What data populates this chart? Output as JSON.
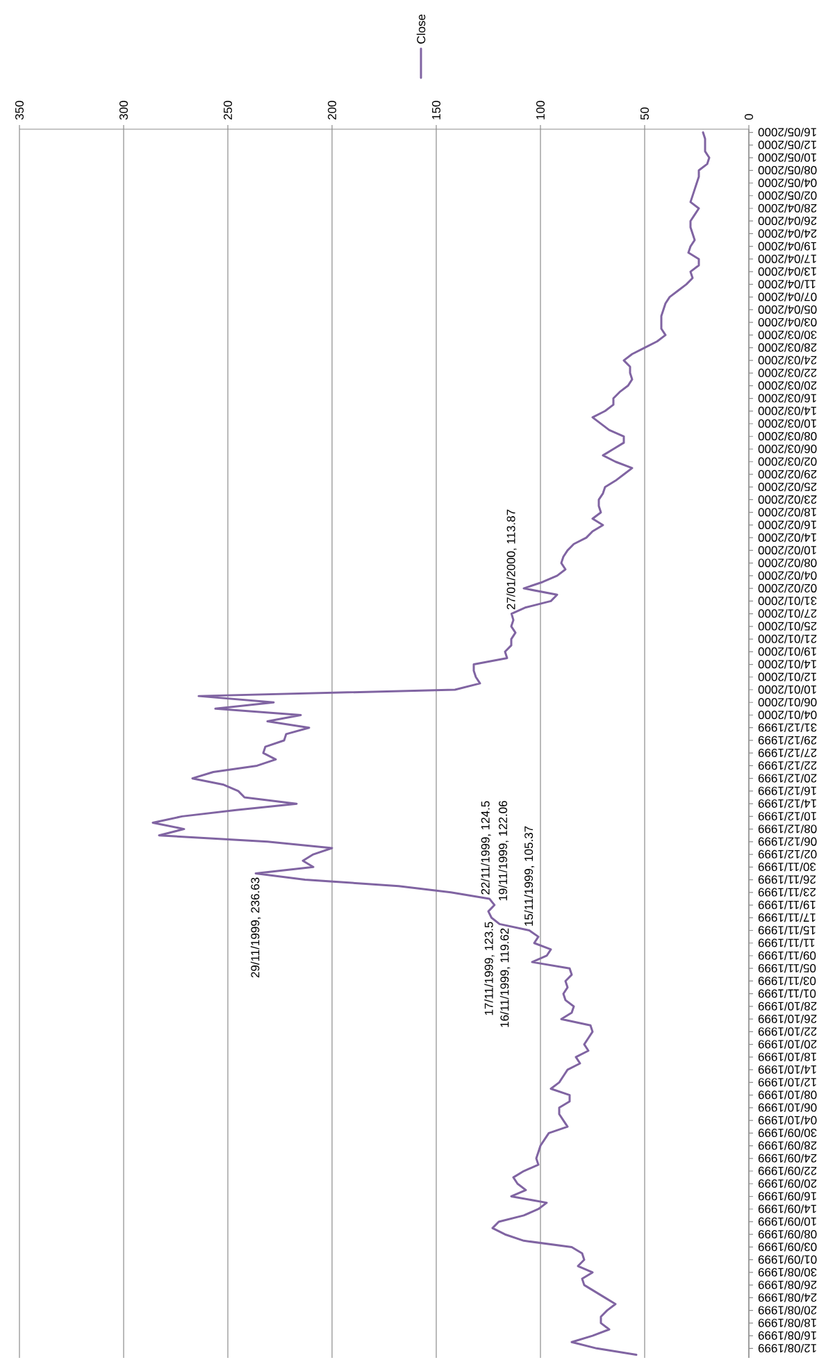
{
  "chart_data": {
    "type": "line",
    "orientation": "horizontal",
    "categories": [
      "16/05/2000",
      null,
      "12/05/2000",
      null,
      "10/05/2000",
      null,
      "08/05/2000",
      null,
      "04/05/2000",
      null,
      "02/05/2000",
      null,
      "28/04/2000",
      null,
      "26/04/2000",
      null,
      "24/04/2000",
      null,
      "19/04/2000",
      null,
      "17/04/2000",
      null,
      "13/04/2000",
      null,
      "11/04/2000",
      null,
      "07/04/2000",
      null,
      "05/04/2000",
      null,
      "03/04/2000",
      null,
      "30/03/2000",
      null,
      "28/03/2000",
      null,
      "24/03/2000",
      null,
      "22/03/2000",
      null,
      "20/03/2000",
      null,
      "16/03/2000",
      null,
      "14/03/2000",
      null,
      "10/03/2000",
      null,
      "08/03/2000",
      null,
      "06/03/2000",
      null,
      "02/03/2000",
      null,
      "29/02/2000",
      null,
      "25/02/2000",
      null,
      "23/02/2000",
      null,
      "18/02/2000",
      null,
      "16/02/2000",
      null,
      "14/02/2000",
      null,
      "10/02/2000",
      null,
      "08/02/2000",
      null,
      "04/02/2000",
      null,
      "02/02/2000",
      null,
      "31/01/2000",
      null,
      "27/01/2000",
      null,
      "25/01/2000",
      null,
      "21/01/2000",
      null,
      "19/01/2000",
      null,
      "14/01/2000",
      null,
      "12/01/2000",
      null,
      "10/01/2000",
      null,
      "06/01/2000",
      null,
      "04/01/2000",
      null,
      "31/12/1999",
      null,
      "29/12/1999",
      null,
      "27/12/1999",
      null,
      "22/12/1999",
      null,
      "20/12/1999",
      null,
      "16/12/1999",
      null,
      "14/12/1999",
      null,
      "10/12/1999",
      null,
      "08/12/1999",
      null,
      "06/12/1999",
      null,
      "02/12/1999",
      null,
      "30/11/1999",
      null,
      "26/11/1999",
      null,
      "23/11/1999",
      null,
      "19/11/1999",
      null,
      "17/11/1999",
      null,
      "15/11/1999",
      null,
      "11/11/1999",
      null,
      "09/11/1999",
      null,
      "05/11/1999",
      null,
      "03/11/1999",
      null,
      "01/11/1999",
      null,
      "28/10/1999",
      null,
      "26/10/1999",
      null,
      "22/10/1999",
      null,
      "20/10/1999",
      null,
      "18/10/1999",
      null,
      "14/10/1999",
      null,
      "12/10/1999",
      null,
      "08/10/1999",
      null,
      "06/10/1999",
      null,
      "04/10/1999",
      null,
      "30/09/1999",
      null,
      "28/09/1999",
      null,
      "24/09/1999",
      null,
      "22/09/1999",
      null,
      "20/09/1999",
      null,
      "16/09/1999",
      null,
      "14/09/1999",
      null,
      "10/09/1999",
      null,
      "08/09/1999",
      null,
      "03/09/1999",
      null,
      "01/09/1999",
      null,
      "30/08/1999",
      null,
      "26/08/1999",
      null,
      "24/08/1999",
      null,
      "20/08/1999",
      null,
      "18/08/1999",
      null,
      "16/08/1999",
      null,
      "12/08/1999",
      null
    ],
    "series": [
      {
        "name": "Close",
        "color": "#8064a2",
        "values": [
          22,
          21,
          21,
          21,
          19,
          20,
          24,
          24,
          25,
          26,
          27,
          28,
          24,
          26,
          28,
          28,
          27,
          26,
          28,
          29,
          24,
          24,
          28,
          27,
          30,
          34,
          38,
          40,
          41,
          42,
          42,
          42,
          40,
          44,
          50,
          56,
          60,
          57,
          57,
          56,
          58,
          62,
          65,
          65,
          69,
          75,
          71,
          67,
          60,
          60,
          65,
          70,
          64,
          56,
          60,
          64,
          69,
          70,
          72,
          72,
          71,
          75,
          70,
          75,
          78,
          84,
          87,
          89,
          90,
          88,
          92,
          99,
          108,
          92,
          95,
          107,
          113.87,
          113,
          114,
          112,
          114,
          114,
          117,
          116,
          132,
          132,
          131,
          129,
          141,
          264,
          228,
          256,
          215,
          231,
          211,
          222,
          223,
          232,
          233,
          227,
          236,
          257,
          267,
          252,
          245,
          242,
          217,
          246,
          272,
          286,
          271,
          283,
          231,
          200,
          209,
          214,
          209,
          236.63,
          213,
          168,
          143,
          124.5,
          122.06,
          125,
          123.5,
          119.62,
          105.37,
          101,
          103,
          95,
          97,
          104,
          86,
          85,
          88,
          87,
          89,
          88,
          84,
          85,
          90,
          76,
          75,
          77,
          79,
          77,
          83,
          81,
          87,
          89,
          91,
          95,
          86,
          86,
          91,
          91,
          89,
          87,
          96,
          98,
          100,
          101,
          102,
          101,
          108,
          113,
          111,
          107,
          114,
          97,
          101,
          108,
          120,
          123,
          117,
          108,
          85,
          80,
          79,
          82,
          75,
          80,
          79,
          74,
          69,
          64,
          68,
          71,
          71,
          67,
          75,
          85,
          73,
          54
        ],
        "value_labels": [
          null,
          null,
          null,
          null,
          null,
          null,
          null,
          null,
          null,
          null,
          null,
          null,
          null,
          null,
          null,
          null,
          null,
          null,
          null,
          null,
          null,
          null,
          null,
          null,
          null,
          null,
          null,
          null,
          null,
          null,
          null,
          null,
          null,
          null,
          null,
          null,
          null,
          null,
          null,
          null,
          null,
          null,
          null,
          null,
          null,
          null,
          null,
          null,
          null,
          null,
          null,
          null,
          null,
          null,
          null,
          null,
          null,
          null,
          null,
          null,
          null,
          null,
          null,
          null,
          null,
          null,
          null,
          null,
          null,
          null,
          null,
          null,
          null,
          null,
          null,
          null,
          "27/01/2000, 113.87",
          null,
          null,
          null,
          null,
          null,
          null,
          null,
          null,
          null,
          null,
          null,
          null,
          null,
          null,
          null,
          null,
          null,
          null,
          null,
          null,
          null,
          null,
          null,
          null,
          null,
          null,
          null,
          null,
          null,
          null,
          null,
          null,
          null,
          null,
          null,
          null,
          null,
          null,
          null,
          null,
          "29/11/1999, 236.63",
          null,
          null,
          null,
          "22/11/1999, 124.5",
          "19/11/1999, 122.06",
          null,
          "17/11/1999, 123.5",
          "16/11/1999, 119.62",
          "15/11/1999, 105.37",
          null,
          null,
          null,
          null,
          null,
          null,
          null,
          null,
          null,
          null,
          null,
          null,
          null,
          null,
          null,
          null,
          null,
          null,
          null,
          null,
          null,
          null,
          null,
          null,
          null,
          null,
          null,
          null,
          null,
          null,
          null,
          null,
          null,
          null,
          null,
          null,
          null,
          null,
          null,
          null,
          null,
          null,
          null,
          null,
          null,
          null,
          null,
          null,
          null,
          null,
          null,
          null,
          null,
          null,
          null,
          null,
          null,
          null,
          null,
          null,
          null,
          null,
          null,
          null,
          null,
          null,
          null
        ]
      }
    ],
    "xlim": [
      350,
      0
    ],
    "xticks": [
      0,
      50,
      100,
      150,
      200,
      250,
      300,
      350
    ],
    "grid": "x",
    "legend": "top"
  }
}
